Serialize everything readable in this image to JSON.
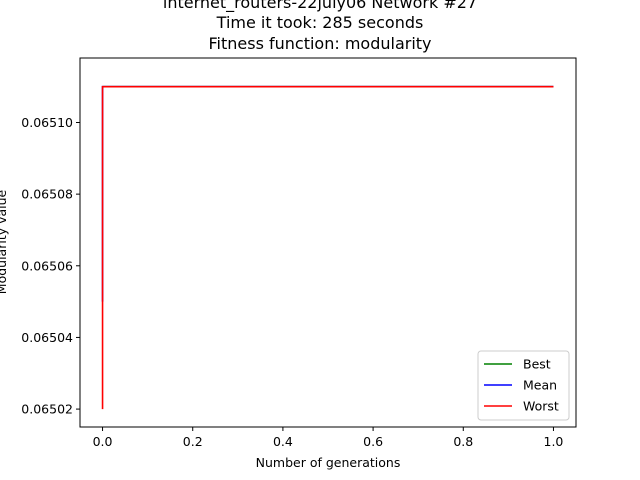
{
  "chart_data": {
    "type": "line",
    "title_lines": [
      "internet_routers-22july06 Network #27",
      "Time it took: 285 seconds",
      "Fitness function: modularity"
    ],
    "xlabel": "Number of generations",
    "ylabel": "Modularity value",
    "xlim": [
      -0.05,
      1.05
    ],
    "ylim": [
      0.065015,
      0.065118
    ],
    "xticks": [
      0.0,
      0.2,
      0.4,
      0.6,
      0.8,
      1.0
    ],
    "xtick_labels": [
      "0.0",
      "0.2",
      "0.4",
      "0.6",
      "0.8",
      "1.0"
    ],
    "yticks": [
      0.06502,
      0.06504,
      0.06506,
      0.06508,
      0.0651
    ],
    "ytick_labels": [
      "0.06502",
      "0.06504",
      "0.06506",
      "0.06508",
      "0.06510"
    ],
    "grid": false,
    "legend_position": "lower-right",
    "series": [
      {
        "name": "Best",
        "color": "#008000",
        "x": [
          0.0,
          0.0,
          1.0
        ],
        "y": [
          0.06511,
          0.06511,
          0.06511
        ]
      },
      {
        "name": "Mean",
        "color": "#0000ff",
        "x": [
          0.0,
          0.0,
          1.0
        ],
        "y": [
          0.06505,
          0.06511,
          0.06511
        ]
      },
      {
        "name": "Worst",
        "color": "#ff0000",
        "x": [
          0.0,
          0.0,
          1.0
        ],
        "y": [
          0.06502,
          0.06511,
          0.06511
        ]
      }
    ]
  }
}
